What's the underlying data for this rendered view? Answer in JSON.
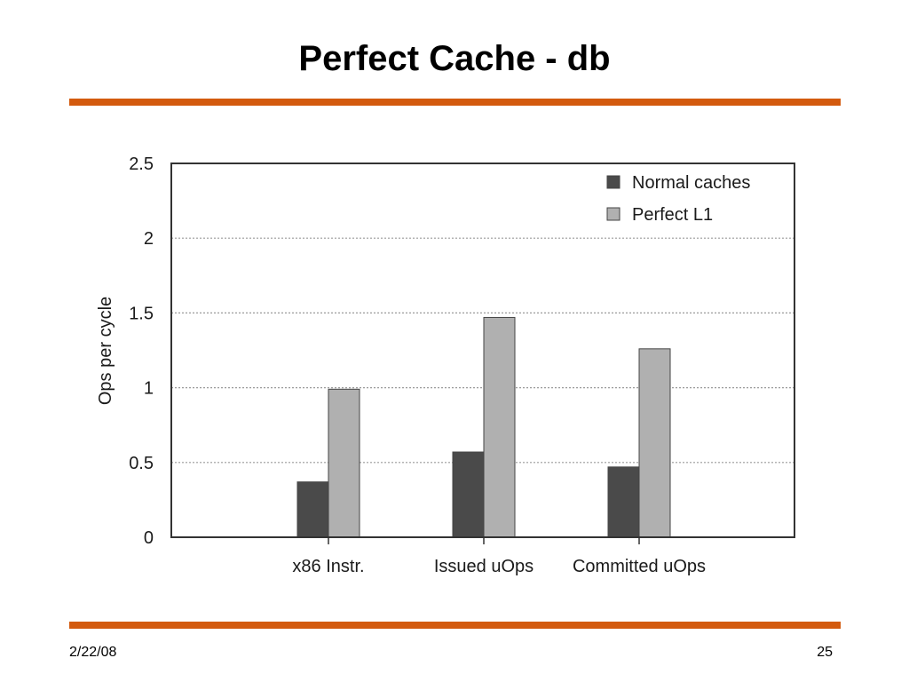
{
  "slide": {
    "title": "Perfect Cache - db",
    "date": "2/22/08",
    "page_number": "25",
    "accent_color": "#D35A0E"
  },
  "chart_data": {
    "type": "bar",
    "categories": [
      "x86 Instr.",
      "Issued uOps",
      "Committed uOps"
    ],
    "series": [
      {
        "name": "Normal caches",
        "values": [
          0.37,
          0.57,
          0.47
        ],
        "color": "#4a4a4a"
      },
      {
        "name": "Perfect L1",
        "values": [
          0.99,
          1.47,
          1.26
        ],
        "color": "#b0b0b0"
      }
    ],
    "ylabel": "Ops per cycle",
    "xlabel": "",
    "ylim": [
      0,
      2.5
    ],
    "yticks": [
      0,
      0.5,
      1,
      1.5,
      2,
      2.5
    ],
    "ytick_labels": [
      "0",
      "0.5",
      "1",
      "1.5",
      "2",
      "2.5"
    ],
    "grid": "horizontal dotted",
    "legend_position": "top-right"
  }
}
